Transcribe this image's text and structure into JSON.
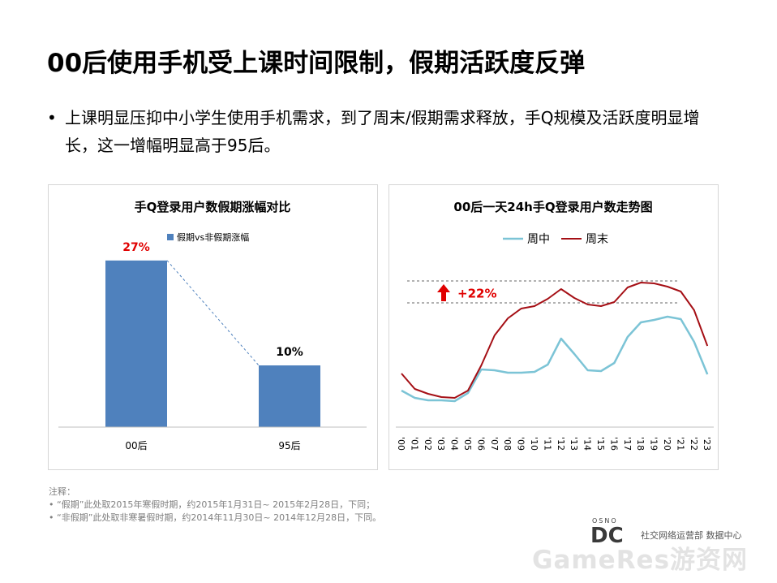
{
  "slide": {
    "title": "00后使用手机受上课时间限制，假期活跃度反弹",
    "bullet_dot": "•",
    "bullet": "上课明显压抑中小学生使用手机需求，到了周末/假期需求释放，手Q规模及活跃度明显增长，这一增幅明显高于95后。"
  },
  "chart_data": [
    {
      "type": "bar",
      "title": "手Q登录用户数假期涨幅对比",
      "categories": [
        "00后",
        "95后"
      ],
      "series": [
        {
          "name": "假期vs非假期涨幅",
          "values": [
            27,
            10
          ],
          "color": "#4f81bd"
        }
      ],
      "data_labels": [
        "27%",
        "10%"
      ],
      "label_colors": [
        "#e00000",
        "#000000"
      ],
      "ylim": [
        0,
        30
      ],
      "legend": "top"
    },
    {
      "type": "line",
      "title": "00后一天24h手Q登录用户数走势图",
      "x": [
        "'00",
        "'01",
        "'02",
        "'03",
        "'04",
        "'05",
        "'06",
        "'07",
        "'08",
        "'09",
        "'10",
        "'11",
        "'12",
        "'13",
        "'14",
        "'15",
        "'16",
        "'17",
        "'18",
        "'19",
        "'20",
        "'21",
        "'22",
        "'23"
      ],
      "series": [
        {
          "name": "周中",
          "color": "#7cc4d6",
          "values": [
            40,
            31,
            28,
            28,
            27,
            37,
            66,
            65,
            62,
            62,
            63,
            72,
            104,
            85,
            65,
            64,
            74,
            106,
            124,
            127,
            131,
            128,
            100,
            60
          ]
        },
        {
          "name": "周末",
          "color": "#a50f15",
          "values": [
            61,
            42,
            36,
            32,
            31,
            40,
            71,
            108,
            129,
            141,
            144,
            153,
            165,
            154,
            146,
            144,
            149,
            167,
            173,
            172,
            168,
            162,
            139,
            95
          ]
        }
      ],
      "annotation": "+22%",
      "annotation_color": "#e00000",
      "legend": "top"
    }
  ],
  "notes": {
    "header": "注释：",
    "items": [
      "“假期”此处取2015年寒假时期，约2015年1月31日~  2015年2月28日，下同；",
      "“非假期”此处取非寒暑假时期，约2014年11月30日~  2014年12月28日，下同。"
    ]
  },
  "logo": {
    "letters": "DC",
    "small": "OSNO",
    "text": "社交网络运营部 数据中心"
  },
  "watermark": "GameRes游资网",
  "colors": {
    "bar": "#4f81bd",
    "weekday": "#7cc4d6",
    "weekend": "#a50f15",
    "highlight": "#e00000"
  }
}
